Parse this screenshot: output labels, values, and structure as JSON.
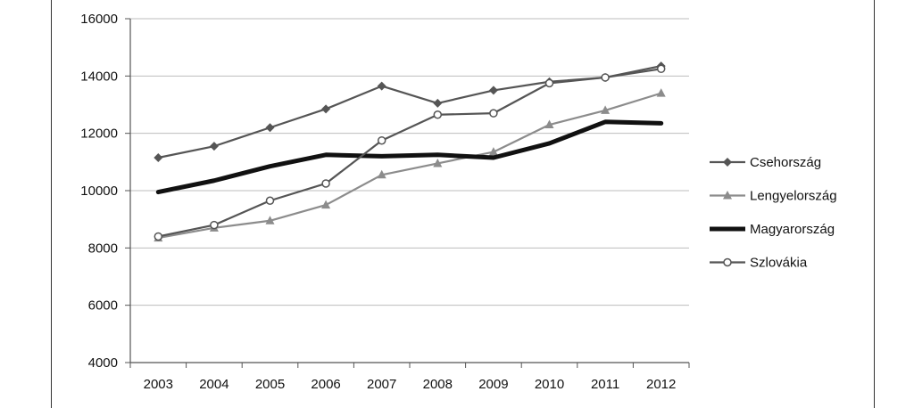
{
  "chart_data": {
    "type": "line",
    "x": [
      "2003",
      "2004",
      "2005",
      "2006",
      "2007",
      "2008",
      "2009",
      "2010",
      "2011",
      "2012"
    ],
    "ylim": [
      4000,
      16000
    ],
    "yticks": [
      "4000",
      "6000",
      "8000",
      "10000",
      "12000",
      "14000",
      "16000"
    ],
    "grid": true,
    "legend_position": "right",
    "series": [
      {
        "name": "Csehország",
        "marker": "diamond",
        "color": "#555555",
        "values": [
          11150,
          11550,
          12200,
          12850,
          13650,
          13050,
          13500,
          13800,
          13950,
          14350
        ]
      },
      {
        "name": "Lengyelország",
        "marker": "triangle",
        "color": "#8c8c8c",
        "values": [
          8350,
          8700,
          8950,
          9500,
          10550,
          10950,
          11350,
          12300,
          12800,
          13400
        ]
      },
      {
        "name": "Magyarország",
        "marker": "none",
        "color": "#111111",
        "values": [
          9950,
          10350,
          10850,
          11250,
          11200,
          11250,
          11150,
          11650,
          12400,
          12350
        ]
      },
      {
        "name": "Szlovákia",
        "marker": "circle",
        "color": "#555555",
        "values": [
          8400,
          8800,
          9650,
          10250,
          11750,
          12650,
          12700,
          13750,
          13950,
          14250
        ]
      }
    ]
  }
}
